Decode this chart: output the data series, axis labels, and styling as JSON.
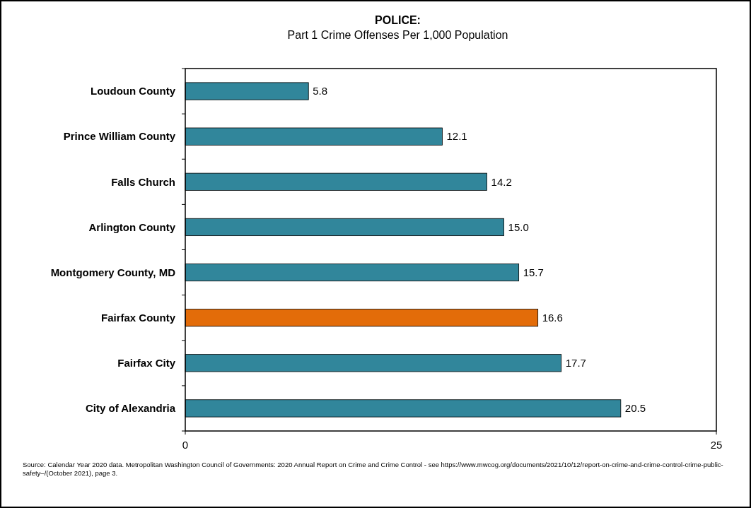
{
  "chart_data": {
    "type": "bar",
    "orientation": "horizontal",
    "title": "POLICE:",
    "subtitle": "Part 1 Crime Offenses Per 1,000 Population",
    "categories": [
      "Loudoun County",
      "Prince William County",
      "Falls Church",
      "Arlington County",
      "Montgomery County, MD",
      "Fairfax County",
      "Fairfax City",
      "City of Alexandria"
    ],
    "values": [
      5.8,
      12.1,
      14.2,
      15.0,
      15.7,
      16.6,
      17.7,
      20.5
    ],
    "colors": [
      "#31869b",
      "#31869b",
      "#31869b",
      "#31869b",
      "#31869b",
      "#e36c09",
      "#31869b",
      "#31869b"
    ],
    "value_labels": [
      "5.8",
      "12.1",
      "14.2",
      "15.0",
      "15.7",
      "16.6",
      "17.7",
      "20.5"
    ],
    "xlim": [
      0,
      25
    ],
    "xticks": [
      0,
      25
    ],
    "grid": false,
    "annotations": [
      "Source: Calendar Year 2020 data.  Metropolitan Washington Council of Governments: 2020 Annual Report on Crime and Crime Control - see https://www.mwcog.org/documents/2021/10/12/report-on-crime-and-crime-control-crime-public-safety–/(October 2021), page 3."
    ]
  }
}
